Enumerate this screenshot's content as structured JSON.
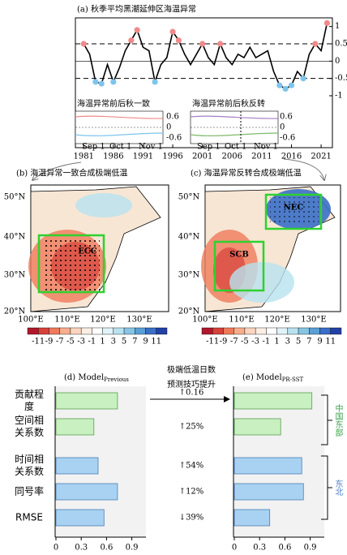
{
  "chart_data": [
    {
      "type": "line",
      "title": "(a) 秋季平均黑潮延伸区海温异常",
      "x": [
        1981,
        1982,
        1983,
        1984,
        1985,
        1986,
        1987,
        1988,
        1989,
        1990,
        1991,
        1992,
        1993,
        1994,
        1995,
        1996,
        1997,
        1998,
        1999,
        2000,
        2001,
        2002,
        2003,
        2004,
        2005,
        2006,
        2007,
        2008,
        2009,
        2010,
        2011,
        2012,
        2013,
        2014,
        2015,
        2016,
        2017,
        2018,
        2019,
        2020,
        2021,
        2022
      ],
      "values": [
        0.5,
        0.2,
        -0.6,
        -0.65,
        -0.1,
        -0.6,
        -0.2,
        0.3,
        0.6,
        0.9,
        0.4,
        0.3,
        -0.6,
        -0.1,
        0.1,
        0.85,
        0.6,
        0.2,
        -0.1,
        0.2,
        0.5,
        0.1,
        -0.1,
        0.5,
        0.1,
        -0.1,
        0.2,
        0.1,
        0.4,
        0.1,
        0.2,
        0.3,
        -0.3,
        -0.7,
        -0.8,
        -0.7,
        -0.3,
        -0.5,
        0.2,
        0.5,
        0.3,
        1.1
      ],
      "xlim": [
        1979.6,
        2022.9
      ],
      "xticks": [
        1981,
        1986,
        1991,
        1996,
        2001,
        2006,
        2011,
        2016,
        2021
      ],
      "ylim": [
        -2.5,
        1.25
      ],
      "yticks": [
        -1,
        -0.5,
        0,
        0.5,
        1
      ],
      "reference_lines": [
        0.5,
        -0.5
      ],
      "color": "#000000",
      "marker_colors": {
        "above": "#f08a8a",
        "below": "#7fc4ea"
      }
    },
    {
      "type": "hbar",
      "title": "(d) Model",
      "title_sub": "Previous",
      "categories": [
        "贡献程度",
        "空间相关系数",
        "时间相关系数",
        "同号率",
        "RMSE"
      ],
      "values": [
        0.73,
        0.45,
        0.5,
        0.73,
        0.57
      ],
      "colors": [
        "#c8f0c0",
        "#c8f0c0",
        "#a9d2f2",
        "#a9d2f2",
        "#a9d2f2"
      ],
      "xlim": [
        0,
        1.0
      ],
      "xticks": [
        0,
        0.3,
        0.6,
        0.9
      ]
    },
    {
      "type": "hbar",
      "title": "(e) Model",
      "title_sub": "PR-SST",
      "values": [
        0.92,
        0.55,
        0.8,
        0.82,
        0.42
      ],
      "colors": [
        "#c8f0c0",
        "#c8f0c0",
        "#a9d2f2",
        "#a9d2f2",
        "#a9d2f2"
      ],
      "xlim": [
        0,
        1.0
      ],
      "xticks": [
        0,
        0.3,
        0.6,
        0.9
      ]
    }
  ],
  "insets": [
    {
      "title": "海温异常前后秋一致",
      "yticks": [
        "0.6",
        "0",
        "-0.6"
      ],
      "xticks": [
        "Sep 1",
        "Oct 1",
        "Nov 1"
      ]
    },
    {
      "title": "海温异常前后秋反转",
      "yticks": [
        "0.6",
        "0",
        "-0.6"
      ],
      "xticks": [
        "Sep 1",
        "Oct 1",
        "Nov 1"
      ]
    }
  ],
  "maps": [
    {
      "title": "(b) 海温异常一致合成极端低温",
      "lat_labels": [
        "50°N",
        "40°N",
        "30°N",
        "20°N"
      ],
      "lon_labels": [
        "100°E",
        "110°E",
        "120°E",
        "130°E"
      ],
      "regions": [
        "ECC"
      ]
    },
    {
      "title": "(c) 海温异常反转合成极端低温",
      "lat_labels": [
        "50°N",
        "40°N",
        "30°N",
        "20°N"
      ],
      "lon_labels": [
        "100°E",
        "110°E",
        "120°E",
        "130°E"
      ],
      "regions": [
        "SCB",
        "NEC"
      ]
    }
  ],
  "colorbar": {
    "labels": [
      -11,
      -9,
      -7,
      -5,
      -3,
      -1,
      1,
      3,
      5,
      7,
      9,
      11
    ],
    "colors": [
      "#b2182b",
      "#d6413a",
      "#ef7a5a",
      "#f7ae8c",
      "#fbd5c0",
      "#fdeee4",
      "#ffffff",
      "#e0f3f8",
      "#b8e2ef",
      "#86c6e4",
      "#5a9fd6",
      "#3a6fc8",
      "#2340a8"
    ]
  },
  "improvement": {
    "title": [
      "极端低温日数",
      "预测技巧提升"
    ],
    "labels": [
      "↑0.16",
      "↑25%",
      "↑54%",
      "↑12%",
      "↓39%"
    ]
  },
  "groups": [
    "中国东部",
    "东北"
  ]
}
